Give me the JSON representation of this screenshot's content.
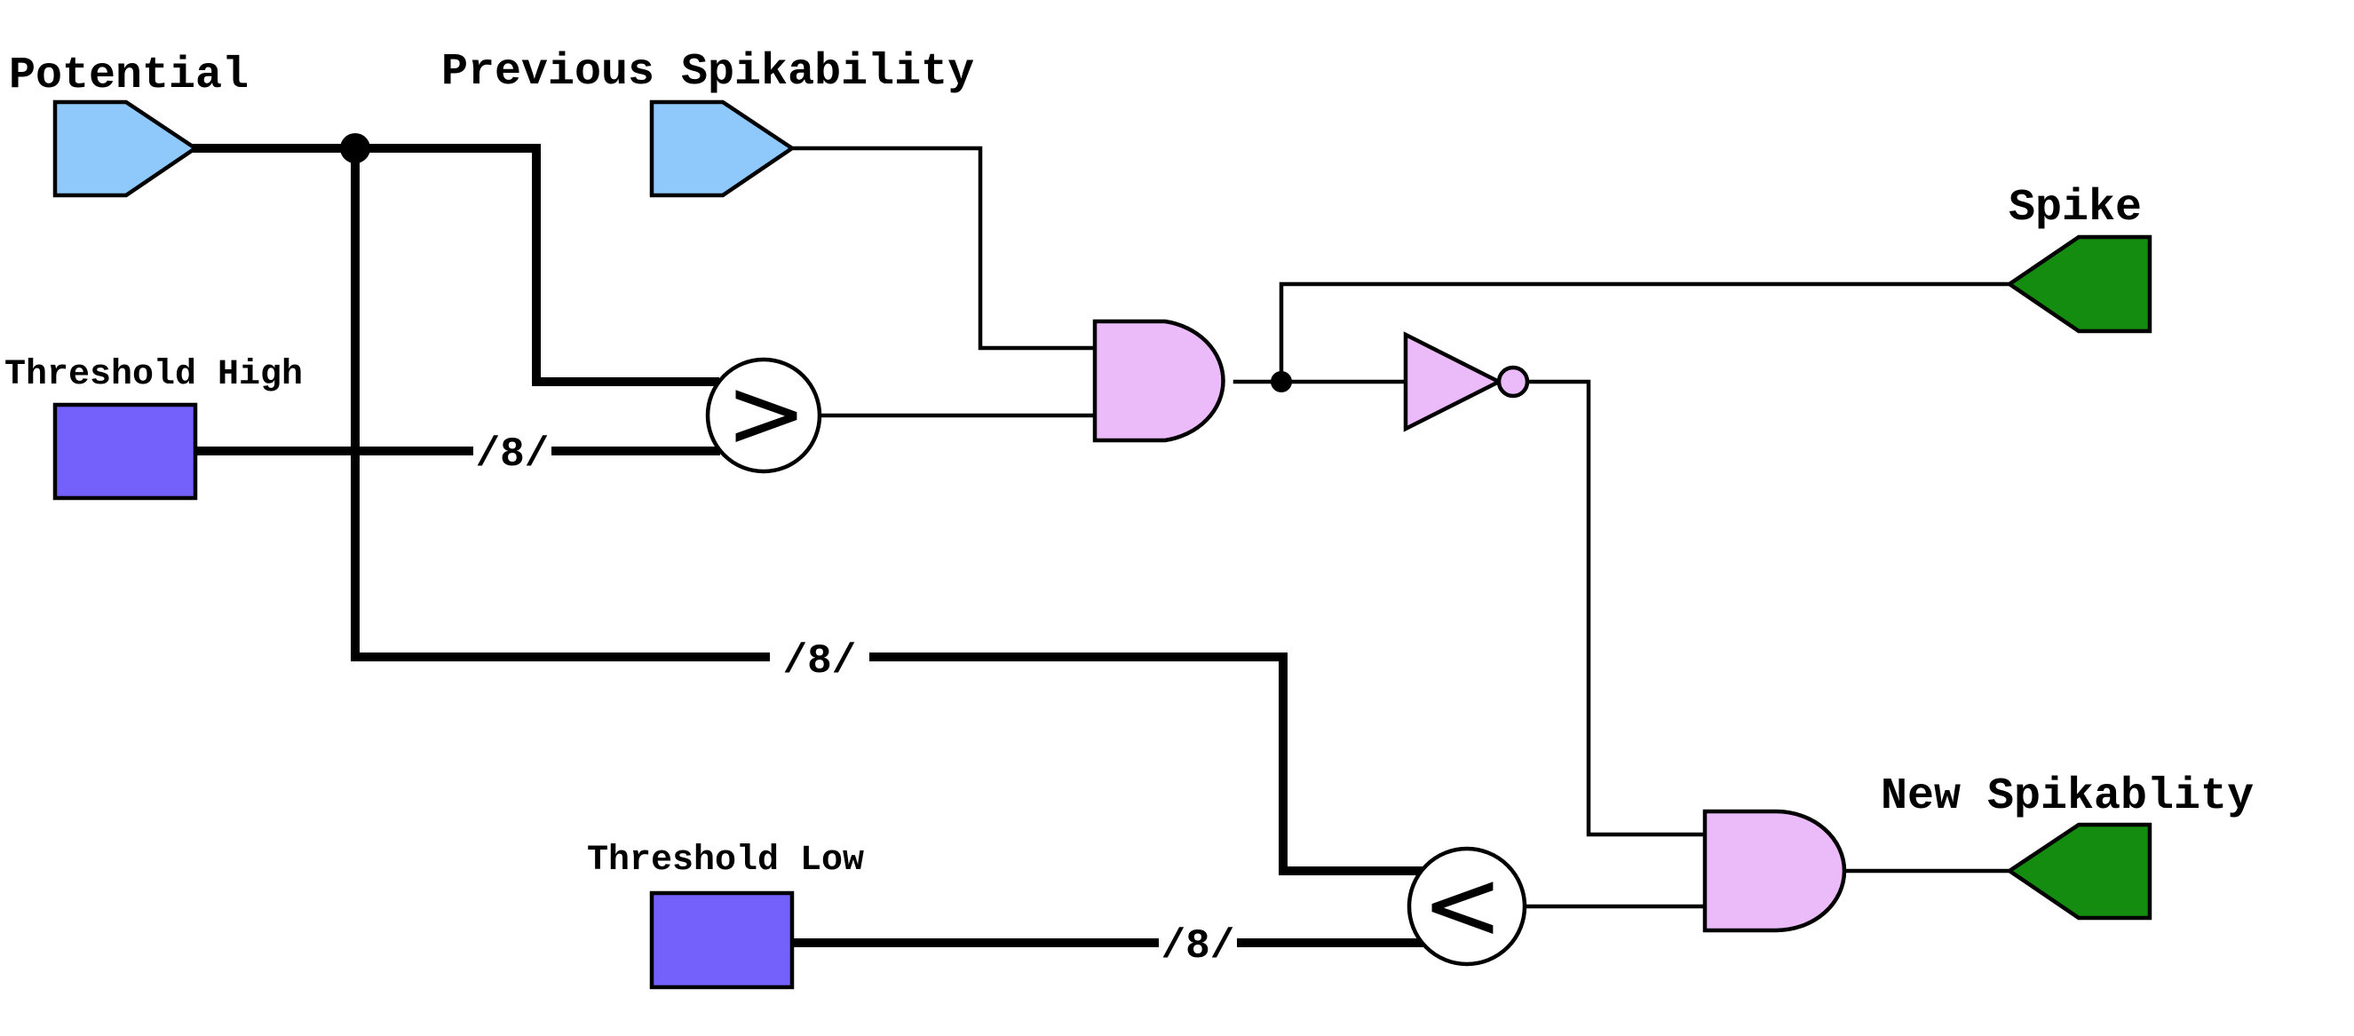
{
  "labels": {
    "potential": "Potential",
    "previous_spikability": "Previous Spikability",
    "threshold_high": "Threshold High",
    "threshold_low": "Threshold Low",
    "spike": "Spike",
    "new_spikability": "New Spikablity"
  },
  "bus_labels": {
    "threshold_high_bus": "/8/",
    "potential_low_bus": "/8/",
    "threshold_low_bus": "/8/"
  },
  "comparators": {
    "greater": ">",
    "less": "<"
  },
  "colors": {
    "input_port": "#8fc9fb",
    "constant_block": "#7460fa",
    "output_port": "#148c0f",
    "gate": "#ebbaf9",
    "wire": "#000000"
  }
}
